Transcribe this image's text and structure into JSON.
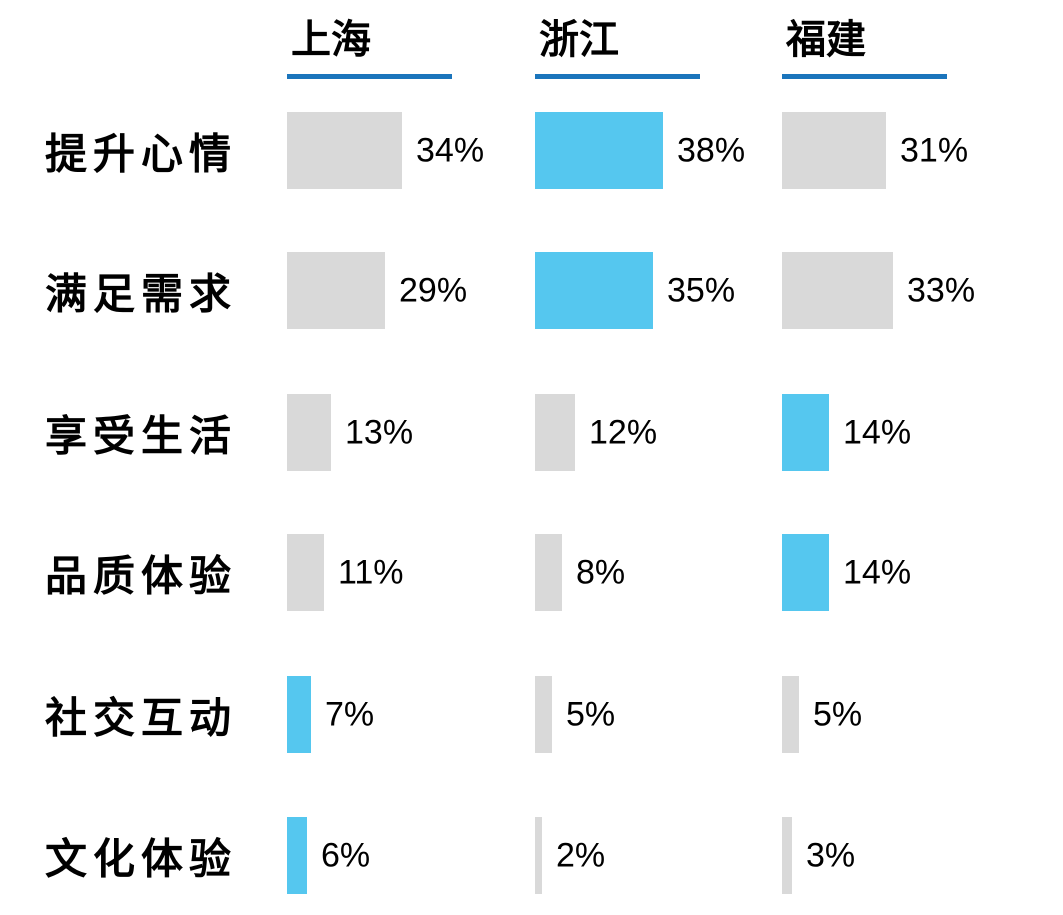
{
  "chart_data": {
    "type": "bar",
    "orientation": "horizontal",
    "title": "",
    "categories": [
      "提升心情",
      "满足需求",
      "享受生活",
      "品质体验",
      "社交互动",
      "文化体验"
    ],
    "series": [
      {
        "name": "上海",
        "values": [
          34,
          29,
          13,
          11,
          7,
          6
        ]
      },
      {
        "name": "浙江",
        "values": [
          38,
          35,
          12,
          8,
          5,
          2
        ]
      },
      {
        "name": "福建",
        "values": [
          31,
          33,
          14,
          14,
          5,
          3
        ]
      }
    ],
    "value_suffix": "%",
    "highlight_series_per_category": [
      "浙江",
      "浙江",
      "福建",
      "福建",
      "上海",
      "上海"
    ],
    "value_range": [
      0,
      40
    ],
    "grid": false,
    "legend_position": "column-headers",
    "colors": {
      "bar_default": "#D9D9D9",
      "bar_highlight": "#55C7EF",
      "header_underline": "#1B75BC",
      "text": "#000000",
      "background": "#FFFFFF"
    }
  }
}
